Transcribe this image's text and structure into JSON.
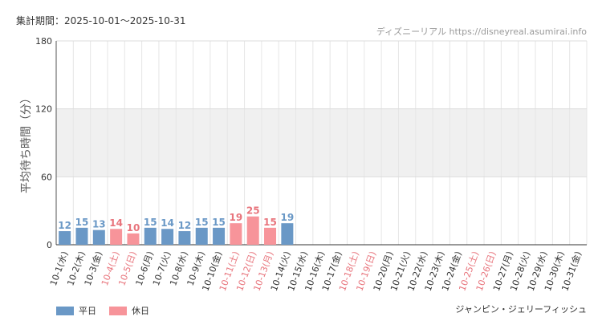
{
  "header": {
    "period_label": "集計期間：2025-10-01～2025-10-31",
    "source": "ディズニーリアル https://disneyreal.asumirai.info"
  },
  "footer": {
    "attraction": "ジャンピン・ジェリーフィッシュ"
  },
  "legend": {
    "weekday": "平日",
    "holiday": "休日"
  },
  "colors": {
    "weekday": "#6a98c6",
    "holiday": "#f7949a",
    "holiday_label": "#e8747c",
    "text": "#333333",
    "band": "#f0f0f0",
    "grid": "#e6e6e6"
  },
  "chart_data": {
    "type": "bar",
    "ylabel": "平均待ち時間（分）",
    "xlabel": "",
    "ylim": [
      0,
      180
    ],
    "yticks": [
      0,
      60,
      120,
      180
    ],
    "categories": [
      "10-1(水)",
      "10-2(木)",
      "10-3(金)",
      "10-4(土)",
      "10-5(日)",
      "10-6(月)",
      "10-7(火)",
      "10-8(水)",
      "10-9(木)",
      "10-10(金)",
      "10-11(土)",
      "10-12(日)",
      "10-13(月)",
      "10-14(火)",
      "10-15(水)",
      "10-16(木)",
      "10-17(金)",
      "10-18(土)",
      "10-19(日)",
      "10-20(月)",
      "10-21(火)",
      "10-22(水)",
      "10-23(木)",
      "10-24(金)",
      "10-25(土)",
      "10-26(日)",
      "10-27(月)",
      "10-28(火)",
      "10-29(水)",
      "10-30(木)",
      "10-31(金)"
    ],
    "values": [
      12,
      15,
      13,
      14,
      10,
      15,
      14,
      12,
      15,
      15,
      19,
      25,
      15,
      19,
      null,
      null,
      null,
      null,
      null,
      null,
      null,
      null,
      null,
      null,
      null,
      null,
      null,
      null,
      null,
      null,
      null
    ],
    "holiday": [
      false,
      false,
      false,
      true,
      true,
      false,
      false,
      false,
      false,
      false,
      true,
      true,
      true,
      false,
      false,
      false,
      false,
      true,
      true,
      false,
      false,
      false,
      false,
      false,
      true,
      true,
      false,
      false,
      false,
      false,
      false
    ],
    "grid": true,
    "legend_position": "bottom-left"
  }
}
